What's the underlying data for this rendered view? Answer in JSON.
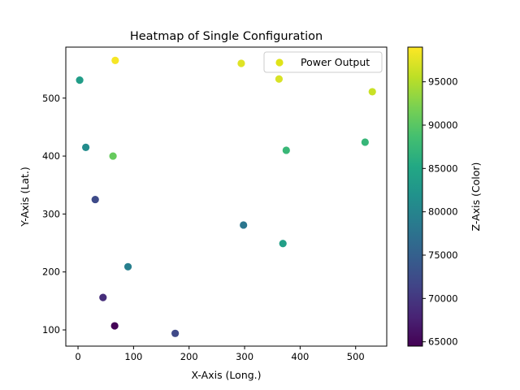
{
  "chart_data": {
    "type": "scatter",
    "title": "Heatmap of Single Configuration",
    "xlabel": "X-Axis (Long.)",
    "ylabel": "Y-Axis (Lat.)",
    "xlim": [
      -22,
      556
    ],
    "ylim": [
      72,
      588
    ],
    "x_ticks": [
      0,
      100,
      200,
      300,
      400,
      500
    ],
    "y_ticks": [
      100,
      200,
      300,
      400,
      500
    ],
    "grid": false,
    "legend": {
      "position": "top-right",
      "label": "Power Output",
      "swatch_color": "#dfe318"
    },
    "colorbar": {
      "label": "Z-Axis (Color)",
      "colormap": "viridis",
      "range": [
        64500,
        99000
      ],
      "ticks": [
        65000,
        70000,
        75000,
        80000,
        85000,
        90000,
        95000
      ]
    },
    "series": [
      {
        "name": "Power Output",
        "points": [
          {
            "x": 67,
            "y": 565,
            "z": 98600
          },
          {
            "x": 294,
            "y": 560,
            "z": 97400
          },
          {
            "x": 362,
            "y": 533,
            "z": 97000
          },
          {
            "x": 530,
            "y": 511,
            "z": 96200
          },
          {
            "x": 3,
            "y": 531,
            "z": 83600
          },
          {
            "x": 14,
            "y": 415,
            "z": 81000
          },
          {
            "x": 63,
            "y": 400,
            "z": 90800
          },
          {
            "x": 375,
            "y": 410,
            "z": 87500
          },
          {
            "x": 517,
            "y": 424,
            "z": 87300
          },
          {
            "x": 31,
            "y": 325,
            "z": 72300
          },
          {
            "x": 298,
            "y": 281,
            "z": 78000
          },
          {
            "x": 369,
            "y": 249,
            "z": 83800
          },
          {
            "x": 90,
            "y": 209,
            "z": 79300
          },
          {
            "x": 45,
            "y": 156,
            "z": 69000
          },
          {
            "x": 66,
            "y": 107,
            "z": 64800
          },
          {
            "x": 175,
            "y": 94,
            "z": 72000
          }
        ]
      }
    ]
  }
}
